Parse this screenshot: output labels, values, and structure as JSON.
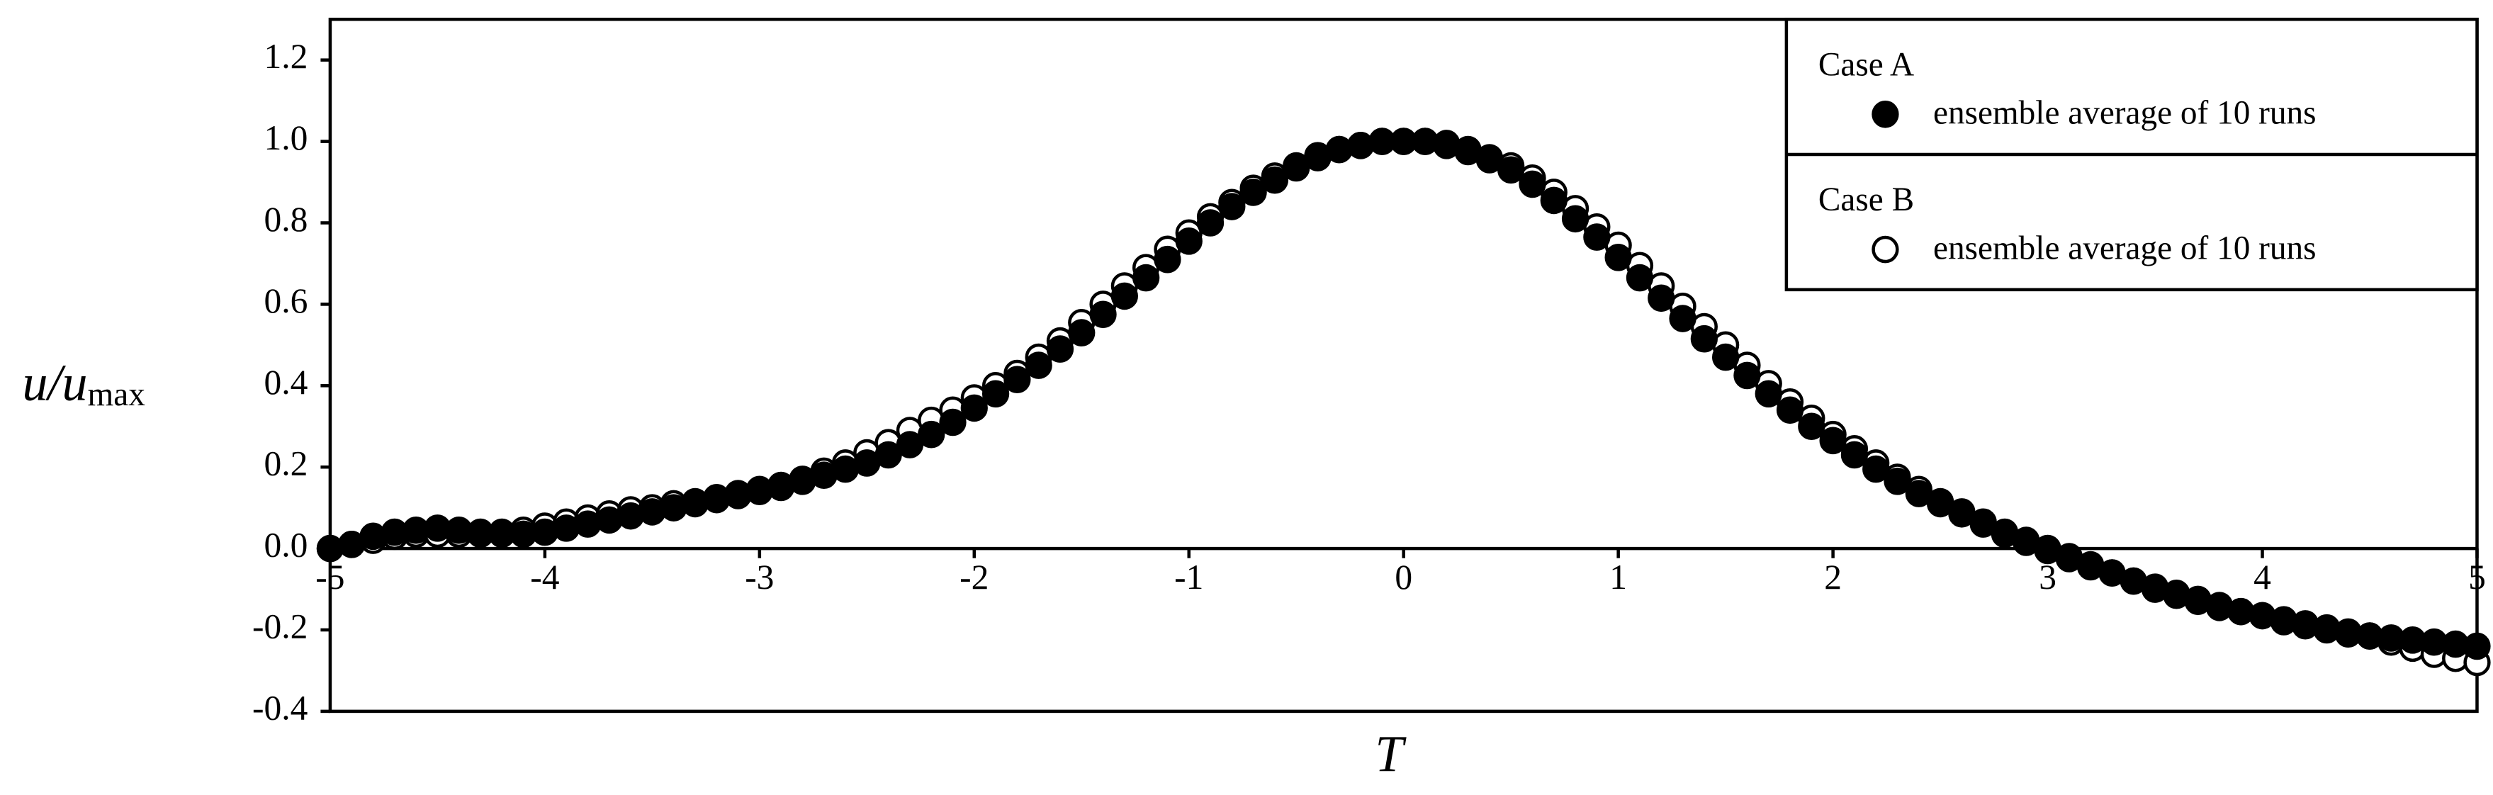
{
  "chart_data": {
    "type": "scatter",
    "xlabel": "T",
    "ylabel": "u/u",
    "ylabel_sub": "max",
    "xlim": [
      -5,
      5
    ],
    "ylim": [
      -0.4,
      1.3
    ],
    "xticks": [
      -5,
      -4,
      -3,
      -2,
      -1,
      0,
      1,
      2,
      3,
      4,
      5
    ],
    "yticks": [
      -0.4,
      -0.2,
      {
        "value": 0,
        "label": "0.0"
      },
      0.2,
      0.4,
      0.6,
      0.8,
      {
        "value": 1,
        "label": "1.0"
      },
      1.2
    ],
    "x": [
      -5,
      -4.9,
      -4.8,
      -4.7,
      -4.6,
      -4.5,
      -4.4,
      -4.3,
      -4.2,
      -4.1,
      -4,
      -3.9,
      -3.8,
      -3.7,
      -3.6,
      -3.5,
      -3.4,
      -3.3,
      -3.2,
      -3.1,
      -3,
      -2.9,
      -2.8,
      -2.7,
      -2.6,
      -2.5,
      -2.4,
      -2.3,
      -2.2,
      -2.1,
      -2,
      -1.9,
      -1.8,
      -1.7,
      -1.6,
      -1.5,
      -1.4,
      -1.3,
      -1.2,
      -1.1,
      -1,
      -0.9,
      -0.8,
      -0.7,
      -0.6,
      -0.5,
      -0.4,
      -0.3,
      -0.2,
      -0.1,
      0,
      0.1,
      0.2,
      0.3,
      0.4,
      0.5,
      0.6,
      0.7,
      0.8,
      0.9,
      1,
      1.1,
      1.2,
      1.3,
      1.4,
      1.5,
      1.6,
      1.7,
      1.8,
      1.9,
      2,
      2.1,
      2.2,
      2.3,
      2.4,
      2.5,
      2.6,
      2.7,
      2.8,
      2.9,
      3,
      3.1,
      3.2,
      3.3,
      3.4,
      3.5,
      3.6,
      3.7,
      3.8,
      3.9,
      4,
      4.1,
      4.2,
      4.3,
      4.4,
      4.5,
      4.6,
      4.7,
      4.8,
      4.9,
      5
    ],
    "series": [
      {
        "legend_title": "Case A",
        "name": "ensemble average of 10 runs",
        "color": "#000000",
        "marker": "filled",
        "values": [
          0,
          0.01,
          0.03,
          0.04,
          0.045,
          0.05,
          0.045,
          0.04,
          0.035,
          0.035,
          0.04,
          0.05,
          0.06,
          0.07,
          0.08,
          0.09,
          0.1,
          0.11,
          0.125,
          0.135,
          0.145,
          0.155,
          0.165,
          0.18,
          0.195,
          0.21,
          0.23,
          0.255,
          0.28,
          0.31,
          0.345,
          0.38,
          0.415,
          0.45,
          0.49,
          0.53,
          0.575,
          0.62,
          0.665,
          0.71,
          0.755,
          0.8,
          0.84,
          0.875,
          0.905,
          0.935,
          0.96,
          0.98,
          0.99,
          1,
          1,
          1,
          0.99,
          0.975,
          0.955,
          0.93,
          0.895,
          0.855,
          0.81,
          0.765,
          0.715,
          0.665,
          0.615,
          0.565,
          0.515,
          0.47,
          0.425,
          0.38,
          0.34,
          0.3,
          0.265,
          0.23,
          0.195,
          0.165,
          0.135,
          0.11,
          0.085,
          0.06,
          0.035,
          0.015,
          -0.005,
          -0.025,
          -0.045,
          -0.06,
          -0.08,
          -0.095,
          -0.11,
          -0.125,
          -0.14,
          -0.155,
          -0.165,
          -0.18,
          -0.19,
          -0.2,
          -0.21,
          -0.215,
          -0.22,
          -0.225,
          -0.23,
          -0.235,
          -0.24
        ]
      },
      {
        "legend_title": "Case B",
        "name": "ensemble average of 10 runs",
        "color": "#000000",
        "marker": "open",
        "values": [
          0,
          0.01,
          0.02,
          0.03,
          0.035,
          0.035,
          0.035,
          0.035,
          0.04,
          0.045,
          0.055,
          0.065,
          0.075,
          0.085,
          0.095,
          0.1,
          0.11,
          0.115,
          0.12,
          0.13,
          0.14,
          0.15,
          0.17,
          0.19,
          0.21,
          0.235,
          0.26,
          0.29,
          0.315,
          0.34,
          0.37,
          0.4,
          0.43,
          0.47,
          0.51,
          0.555,
          0.6,
          0.645,
          0.69,
          0.735,
          0.775,
          0.815,
          0.85,
          0.885,
          0.915,
          0.94,
          0.965,
          0.98,
          0.99,
          1,
          1,
          1,
          0.995,
          0.98,
          0.96,
          0.94,
          0.91,
          0.875,
          0.835,
          0.79,
          0.745,
          0.695,
          0.645,
          0.595,
          0.545,
          0.5,
          0.45,
          0.405,
          0.36,
          0.32,
          0.28,
          0.245,
          0.21,
          0.175,
          0.145,
          0.115,
          0.09,
          0.065,
          0.04,
          0.02,
          0,
          -0.02,
          -0.04,
          -0.06,
          -0.08,
          -0.1,
          -0.115,
          -0.13,
          -0.145,
          -0.155,
          -0.165,
          -0.175,
          -0.185,
          -0.195,
          -0.205,
          -0.215,
          -0.23,
          -0.245,
          -0.26,
          -0.27,
          -0.28
        ]
      }
    ]
  }
}
